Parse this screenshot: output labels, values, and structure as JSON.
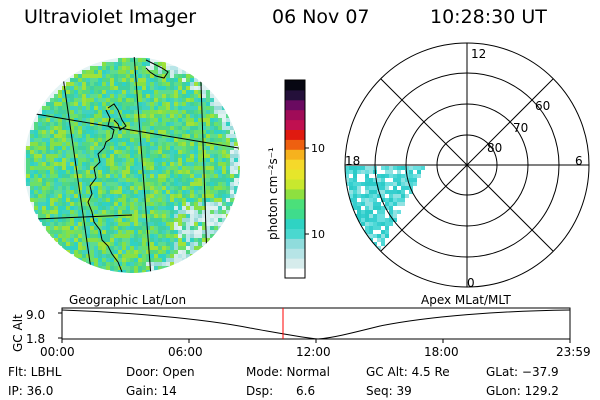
{
  "header": {
    "title": "Ultraviolet Imager",
    "date": "06 Nov 07",
    "time": "10:28:30 UT"
  },
  "colorbar": {
    "unit_label": "photon cm⁻²s⁻¹",
    "ticks": [
      "100",
      "10"
    ],
    "colors": [
      "#ffffff",
      "#d6ecec",
      "#b6e4e6",
      "#8fdcdc",
      "#4ad8cf",
      "#2fd3c3",
      "#3fdc8c",
      "#4be07a",
      "#8ee040",
      "#c8e82e",
      "#e6e62a",
      "#f5d92a",
      "#f6b21e",
      "#ee6010",
      "#e01a10",
      "#c01050",
      "#a00c58",
      "#6a0a60",
      "#24103a",
      "#070712"
    ]
  },
  "globe": {
    "label": "Geographic Lat/Lon",
    "colors": [
      "#52d884",
      "#3fd0a0",
      "#6ce068",
      "#2fd2c4",
      "#86e046",
      "#5ddc90",
      "#40d2c0",
      "#a0e23a"
    ],
    "edge_colors": [
      "#d2ecec",
      "#b8e6e8",
      "#e0f2f2",
      "#9adada"
    ],
    "coast_color": "#000000"
  },
  "polar": {
    "label": "Apex MLat/MLT",
    "mlt_labels": [
      "12",
      "18",
      "6",
      "0"
    ],
    "lat_labels": [
      "60",
      "70",
      "80"
    ],
    "aurora_colors": [
      "#4fd8d6",
      "#36cfcf",
      "#6adfe0",
      "#2ccbc8",
      "#90e2e2"
    ]
  },
  "timeline": {
    "alt_label": "GC Alt",
    "y_ticks": [
      "9.0",
      "1.8"
    ],
    "x_ticks": [
      "00:00",
      "06:00",
      "12:00",
      "18:00",
      "23:59"
    ],
    "marker_color": "#ff0000"
  },
  "info": {
    "flt": "Flt: LBHL",
    "ip": "IP: 36.0",
    "door": "Door: Open",
    "gain": "Gain: 14",
    "mode": "Mode: Normal",
    "dsp": "Dsp:      6.6",
    "gc_alt": "GC Alt: 4.5 Re",
    "seq": "Seq: 39",
    "glat": "GLat: −37.9",
    "glon": "GLon: 129.2"
  }
}
